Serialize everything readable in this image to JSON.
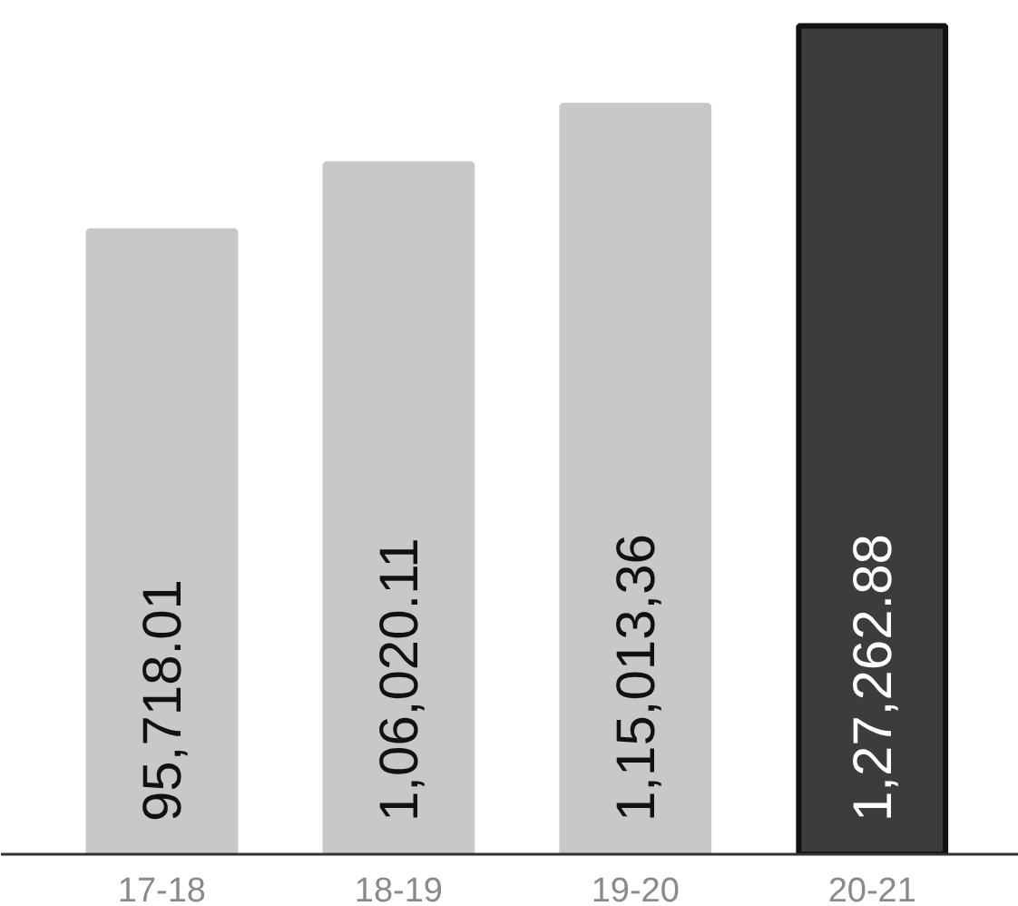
{
  "chart_data": {
    "type": "bar",
    "categories": [
      "17-18",
      "18-19",
      "19-20",
      "20-21"
    ],
    "values": [
      95718.01,
      106020.11,
      115013.36,
      127262.88
    ],
    "value_labels": [
      "95,718.01",
      "1,06,020.11",
      "1,15,013,36",
      "1,27,262.88"
    ],
    "colors": [
      "#c8c8c8",
      "#c8c8c8",
      "#c8c8c8",
      "#3c3c3c"
    ]
  }
}
